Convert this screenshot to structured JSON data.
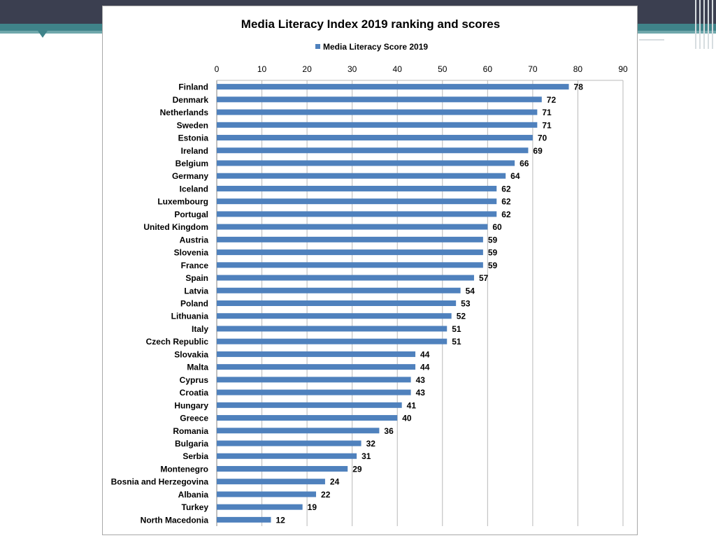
{
  "slide": {
    "band_color": "#3b3f50",
    "accent_color": "#3f8389"
  },
  "chart_data": {
    "type": "bar",
    "orientation": "horizontal",
    "title": "Media Literacy Index 2019 ranking and scores",
    "legend_position": "top-center",
    "xlim": [
      0,
      90
    ],
    "x_ticks": [
      0,
      10,
      20,
      30,
      40,
      50,
      60,
      70,
      80,
      90
    ],
    "x_axis_position": "top",
    "grid": true,
    "bar_color": "#4f81bd",
    "categories": [
      "Finland",
      "Denmark",
      "Netherlands",
      "Sweden",
      "Estonia",
      "Ireland",
      "Belgium",
      "Germany",
      "Iceland",
      "Luxembourg",
      "Portugal",
      "United Kingdom",
      "Austria",
      "Slovenia",
      "France",
      "Spain",
      "Latvia",
      "Poland",
      "Lithuania",
      "Italy",
      "Czech Republic",
      "Slovakia",
      "Malta",
      "Cyprus",
      "Croatia",
      "Hungary",
      "Greece",
      "Romania",
      "Bulgaria",
      "Serbia",
      "Montenegro",
      "Bosnia and Herzegovina",
      "Albania",
      "Turkey",
      "North Macedonia"
    ],
    "series": [
      {
        "name": "Media Literacy Score 2019",
        "values": [
          78,
          72,
          71,
          71,
          70,
          69,
          66,
          64,
          62,
          62,
          62,
          60,
          59,
          59,
          59,
          57,
          54,
          53,
          52,
          51,
          51,
          44,
          44,
          43,
          43,
          41,
          40,
          36,
          32,
          31,
          29,
          24,
          22,
          19,
          12
        ]
      }
    ]
  }
}
